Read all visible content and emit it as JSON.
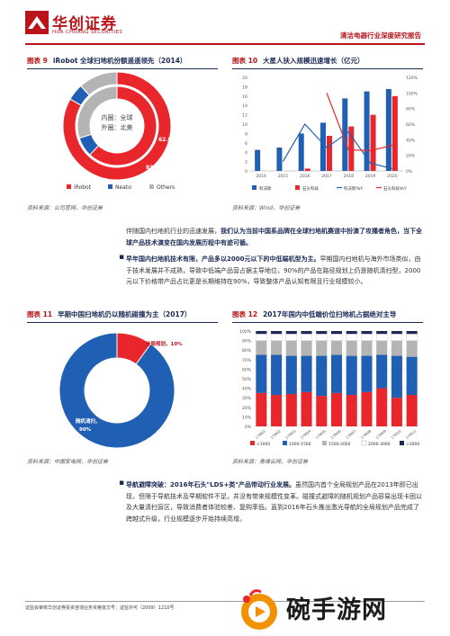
{
  "header": {
    "logo_cn": "华创证券",
    "logo_en": "HUA CHUANG SECURITIES",
    "report_tag": "清洁电器行业深度研究报告"
  },
  "fig9": {
    "tag": "图表 9",
    "title": "iRobot 全球扫地机份额遥遥领先（2014）",
    "center_line1": "内圈：全球",
    "center_line2": "外圈：北美",
    "inner_label": "62.0%",
    "outer_label": "83.3%",
    "legend": [
      "iRobot",
      "Neato",
      "Others"
    ],
    "source": "资料来源：公司官网，华创证券"
  },
  "fig10": {
    "tag": "图表 10",
    "title": "大星人扶入规模迅速增长（亿元）",
    "source": "资料来源：Wind，华创证券",
    "legend": [
      "科沃斯",
      "石头科技",
      "科沃斯YoY",
      "石头科技YoY"
    ]
  },
  "para1": {
    "text_a": "伴随国内扫地机行业的迅速发展，",
    "text_b": "我们认为当前中国系品牌在全球扫地机赛道中扮演了攻播者角色，当下全球产品技术演变在国内发展历程中有迹可循。"
  },
  "para2": {
    "bold": "早年国内扫地机技术有限，产品多以2000元以下的中低端机型为主。",
    "text": "早期国内扫地机与海外市场类似，由于技术发展并不成熟，导致中低端产品营占据主导地位，90%的产品在路径规划上仍是随机清扫型，2000元以下价格带产品占比更是长期维持在90%，导致整体产品认知有限且行业规模较小。"
  },
  "fig11": {
    "tag": "图表 11",
    "title": "早期中国扫地机仍以随机碰撞为主（2017）",
    "label_small": "全局规划，10%",
    "label_big_1": "随机清扫，",
    "label_big_2": "90%",
    "source": "资料来源：中国家电网，华创证券"
  },
  "fig12": {
    "tag": "图表 12",
    "title": "2017年国内中低端价位扫地机占据绝对主导",
    "legend": [
      "<1000",
      "1000-1500",
      "1500-2000",
      "2000-3000",
      ">3000"
    ],
    "source": "资料来源：奥维云网，华创证券"
  },
  "para3": {
    "bold": "导航避障突破：2016年石头\"LDS+类\"产品带动行业发展。",
    "text": "虽然国内首个全局规划产品在2013年即已出现，但限于导航技术及早期软件不足，并没有带来规模性变革。碰撞式避障的随机规划产品容易出现卡困以及大量清扫盲区，导致消费者体验较差、复购率低。直到2016年石头推出激光导航的全局规划产品完成了跨越式升级，行业规模逐步开始持续高增。"
  },
  "footer": {
    "text": "证监会审核华创证券投资咨询业务资格批文号：证监许可（2009）1210号",
    "watermark": "碗手游网"
  },
  "chart_data": [
    {
      "type": "pie",
      "title": "iRobot 全球扫地机份额遥遥领先（2014）",
      "rings": [
        {
          "name": "内圈：全球",
          "values": [
            62.0,
            8.0,
            30.0
          ]
        },
        {
          "name": "外圈：北美",
          "values": [
            83.3,
            5.0,
            11.7
          ]
        }
      ],
      "categories": [
        "iRobot",
        "Neato",
        "Others"
      ],
      "colors": [
        "#e8262b",
        "#1f5fb4",
        "#b4b4b4"
      ]
    },
    {
      "type": "bar",
      "title": "大星人扶入规模迅速增长（亿元）",
      "categories": [
        "2014",
        "2015",
        "2016",
        "2017",
        "2018",
        "2019",
        "2020"
      ],
      "series": [
        {
          "name": "科沃斯",
          "values": [
            4.5,
            5.0,
            8.0,
            10.3,
            15.5,
            17.0,
            17.5
          ]
        },
        {
          "name": "石头科技",
          "values": [
            0,
            0,
            0.5,
            7.5,
            9.5,
            12.0,
            16.0
          ]
        },
        {
          "name": "科沃斯YoY",
          "values": [
            null,
            12,
            60,
            30,
            50,
            10,
            3
          ]
        },
        {
          "name": "石头科技YoY",
          "values": [
            null,
            null,
            null,
            100,
            27,
            26,
            33
          ]
        }
      ],
      "ylim": [
        0,
        20
      ],
      "y2lim": [
        0,
        120
      ],
      "y_ticks": [
        0,
        2,
        4,
        6,
        8,
        10,
        12,
        14,
        16,
        18,
        20
      ],
      "y2_ticks": [
        "0%",
        "20%",
        "40%",
        "60%",
        "80%",
        "100%",
        "120%"
      ]
    },
    {
      "type": "pie",
      "title": "早期中国扫地机仍以随机碰撞为主（2017）",
      "categories": [
        "全局规划",
        "随机清扫"
      ],
      "values": [
        10,
        90
      ],
      "colors": [
        "#e8262b",
        "#1f5fb4"
      ]
    },
    {
      "type": "bar",
      "title": "2017年国内中低端价位扫地机占据绝对主导",
      "categories": [
        "17M01",
        "17M02",
        "17M03",
        "17M04",
        "17M05",
        "17M06",
        "17M07",
        "17M08",
        "17M09",
        "17M10",
        "17M11"
      ],
      "series": [
        {
          "name": "<1000",
          "values": [
            35,
            33,
            34,
            36,
            32,
            35,
            33,
            36,
            40,
            30,
            33
          ]
        },
        {
          "name": "1000-1500",
          "values": [
            40,
            42,
            40,
            38,
            42,
            40,
            41,
            38,
            35,
            44,
            40
          ]
        },
        {
          "name": "1500-2000",
          "values": [
            15,
            15,
            16,
            16,
            16,
            15,
            16,
            16,
            15,
            16,
            17
          ]
        },
        {
          "name": "2000-3000",
          "values": [
            7,
            7,
            7,
            7,
            7,
            7,
            7,
            7,
            7,
            7,
            7
          ]
        },
        {
          "name": ">3000",
          "values": [
            3,
            3,
            3,
            3,
            3,
            3,
            3,
            3,
            3,
            3,
            3
          ]
        }
      ],
      "ylim": [
        0,
        100
      ],
      "y_ticks": [
        "0%",
        "10%",
        "20%",
        "30%",
        "40%",
        "50%",
        "60%",
        "70%",
        "80%",
        "90%",
        "100%"
      ],
      "colors": [
        "#e8262b",
        "#1f5fb4",
        "#b4b4b4",
        "#ffffff",
        "#1b2a55"
      ]
    }
  ]
}
